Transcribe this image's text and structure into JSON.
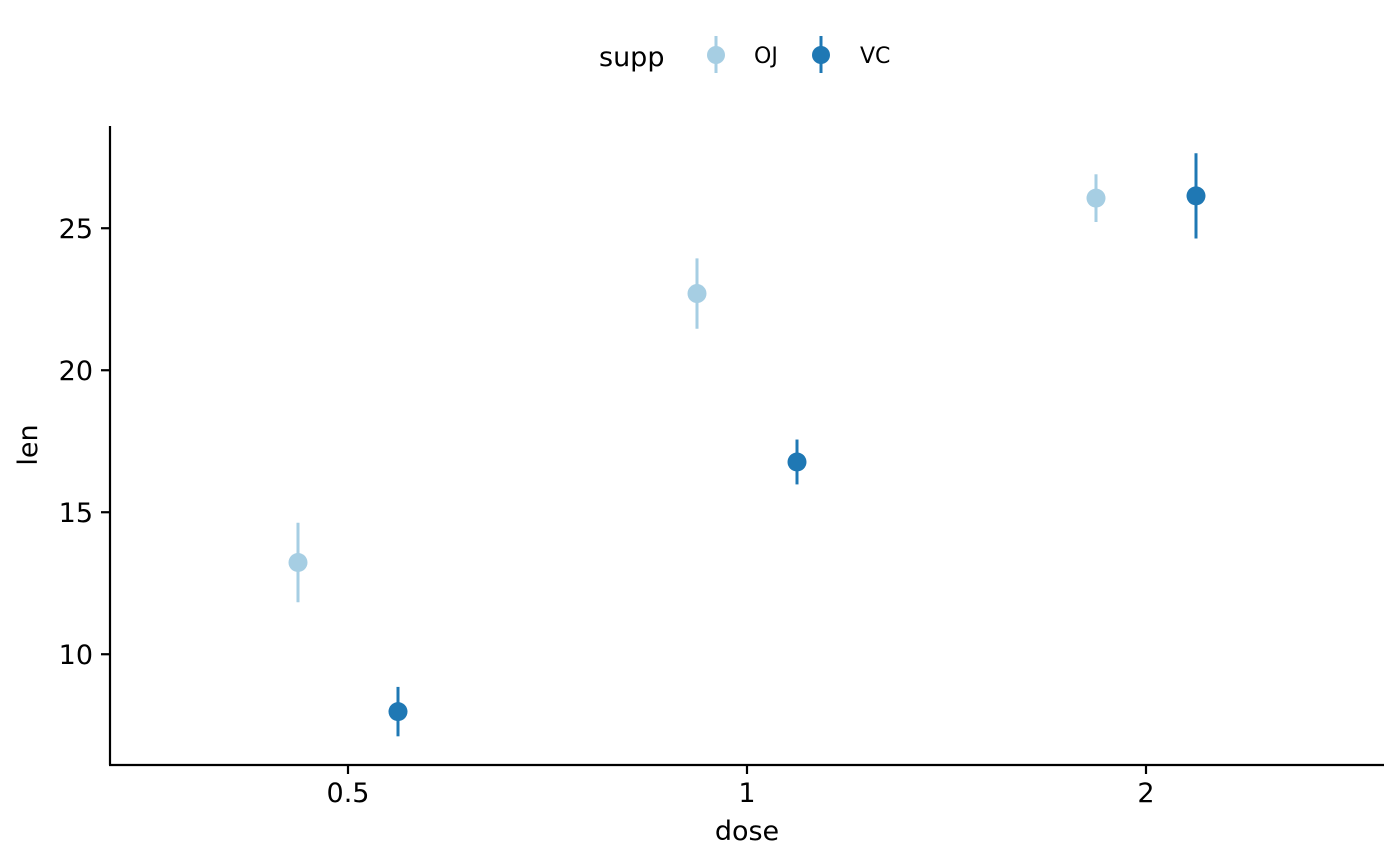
{
  "chart_data": {
    "type": "scatter",
    "xlabel": "dose",
    "ylabel": "len",
    "categories": [
      "0.5",
      "1",
      "2"
    ],
    "y_ticks": [
      10,
      15,
      20,
      25
    ],
    "ylim": [
      6.1,
      28.6
    ],
    "grid": false,
    "legend": {
      "title": "supp",
      "position": "top",
      "entries": [
        "OJ",
        "VC"
      ]
    },
    "series": [
      {
        "name": "OJ",
        "color": "#A6CEE3",
        "values": [
          13.23,
          22.7,
          26.06
        ],
        "error_low": [
          11.83,
          21.46,
          25.22
        ],
        "error_high": [
          14.63,
          23.94,
          26.9
        ]
      },
      {
        "name": "VC",
        "color": "#1F78B4",
        "values": [
          7.98,
          16.77,
          26.14
        ],
        "error_low": [
          7.11,
          15.98,
          24.64
        ],
        "error_high": [
          8.85,
          17.56,
          27.64
        ]
      }
    ]
  }
}
